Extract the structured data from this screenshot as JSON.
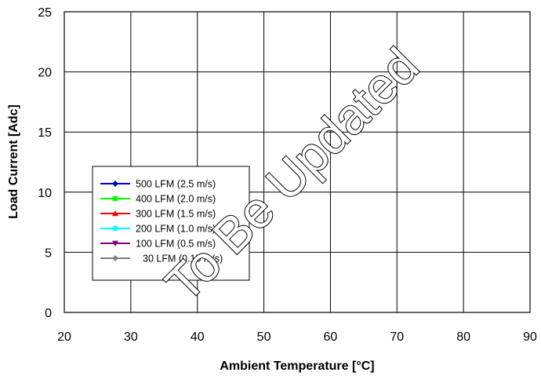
{
  "chart_data": {
    "type": "line",
    "title": "",
    "xlabel": "Ambient Temperature [°C]",
    "ylabel": "Load Current  [Adc]",
    "xlim": [
      20,
      90
    ],
    "ylim": [
      0,
      25
    ],
    "xticks": [
      20,
      30,
      40,
      50,
      60,
      70,
      80,
      90
    ],
    "yticks": [
      0,
      5,
      10,
      15,
      20,
      25
    ],
    "grid": true,
    "legend_position": "center-left",
    "series": [
      {
        "name": "500 LFM (2.5 m/s)",
        "color": "#0000CC",
        "marker": "diamond",
        "x": [],
        "values": []
      },
      {
        "name": "400 LFM (2.0 m/s)",
        "color": "#00FF00",
        "marker": "square",
        "x": [],
        "values": []
      },
      {
        "name": "300 LFM (1.5 m/s)",
        "color": "#FF0000",
        "marker": "triangle",
        "x": [],
        "values": []
      },
      {
        "name": "200 LFM (1.0 m/s)",
        "color": "#00FFFF",
        "marker": "circle",
        "x": [],
        "values": []
      },
      {
        "name": "100 LFM (0.5 m/s)",
        "color": "#800080",
        "marker": "triangle-down",
        "x": [],
        "values": []
      },
      {
        "name": "30 LFM (0.15 m/s)",
        "color": "#808080",
        "marker": "diamond",
        "x": [],
        "values": []
      }
    ],
    "watermark": "To Be Updated"
  }
}
